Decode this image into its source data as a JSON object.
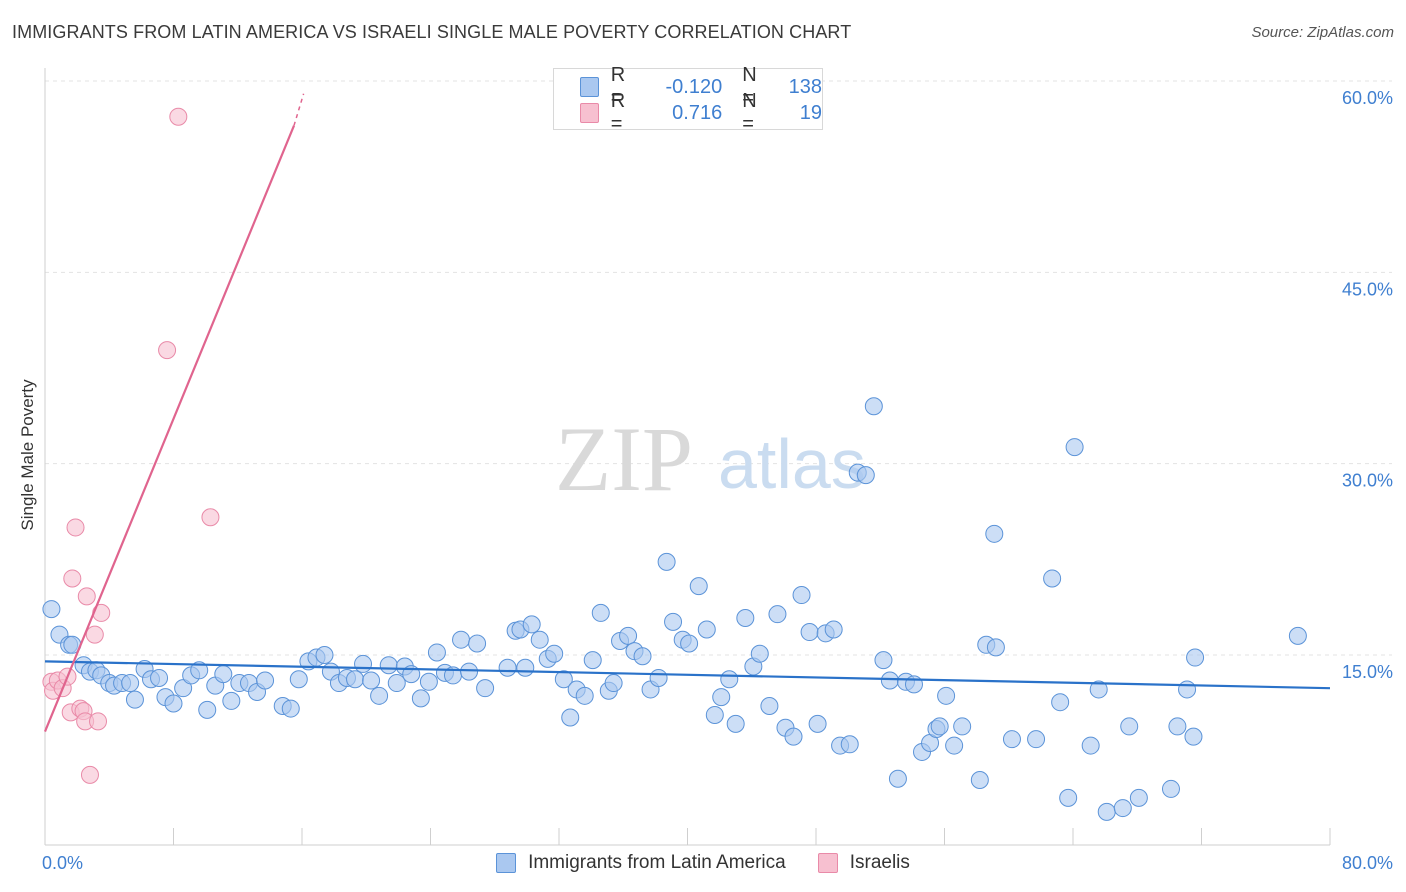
{
  "title": "IMMIGRANTS FROM LATIN AMERICA VS ISRAELI SINGLE MALE POVERTY CORRELATION CHART",
  "source": "Source: ZipAtlas.com",
  "watermark": {
    "zip": "ZIP",
    "atlas": "atlas"
  },
  "colors": {
    "blue_fill": "#aac8f0",
    "blue_stroke": "#5b93d8",
    "blue_line": "#2a72c9",
    "pink_fill": "#f7c0d0",
    "pink_stroke": "#e98aa8",
    "pink_line": "#e0648e",
    "tick_text": "#3f7fd0",
    "grid": "#e3e3e3"
  },
  "legend_top": {
    "rows": [
      {
        "r_label": "R =",
        "r_value": "-0.120",
        "n_label": "N =",
        "n_value": "138",
        "series": "blue"
      },
      {
        "r_label": "R =",
        "r_value": "0.716",
        "n_label": "N =",
        "n_value": "19",
        "series": "pink"
      }
    ]
  },
  "chart_data": {
    "type": "scatter",
    "title": "IMMIGRANTS FROM LATIN AMERICA VS ISRAELI SINGLE MALE POVERTY CORRELATION CHART",
    "xlabel": "",
    "ylabel": "Single Male Poverty",
    "xlim": [
      0,
      80
    ],
    "ylim": [
      0,
      62.5
    ],
    "x_tick_labels": [
      "0.0%",
      "80.0%"
    ],
    "y_ticks": [
      15,
      30,
      45,
      60
    ],
    "y_tick_labels": [
      "15.0%",
      "30.0%",
      "45.0%",
      "60.0%"
    ],
    "grid": "horizontal dashed",
    "legend": "bottom-center",
    "series": [
      {
        "name": "Immigrants from Latin America",
        "color": "blue",
        "trendline": [
          [
            0,
            14.5
          ],
          [
            80,
            12.4
          ]
        ],
        "points": [
          [
            0.4,
            18.6
          ],
          [
            0.9,
            16.6
          ],
          [
            1.5,
            15.8
          ],
          [
            1.7,
            15.8
          ],
          [
            2.4,
            14.2
          ],
          [
            2.8,
            13.7
          ],
          [
            3.2,
            13.8
          ],
          [
            3.5,
            13.4
          ],
          [
            4.0,
            12.8
          ],
          [
            4.3,
            12.6
          ],
          [
            4.8,
            12.8
          ],
          [
            5.3,
            12.8
          ],
          [
            5.6,
            11.5
          ],
          [
            6.2,
            13.9
          ],
          [
            6.6,
            13.1
          ],
          [
            7.1,
            13.2
          ],
          [
            7.5,
            11.7
          ],
          [
            8.0,
            11.2
          ],
          [
            8.6,
            12.4
          ],
          [
            9.1,
            13.4
          ],
          [
            9.6,
            13.8
          ],
          [
            10.1,
            10.7
          ],
          [
            10.6,
            12.6
          ],
          [
            11.1,
            13.5
          ],
          [
            11.6,
            11.4
          ],
          [
            12.1,
            12.8
          ],
          [
            12.7,
            12.8
          ],
          [
            13.2,
            12.1
          ],
          [
            13.7,
            13.0
          ],
          [
            14.8,
            11.0
          ],
          [
            15.3,
            10.8
          ],
          [
            15.8,
            13.1
          ],
          [
            16.4,
            14.5
          ],
          [
            16.9,
            14.8
          ],
          [
            17.4,
            15.0
          ],
          [
            17.8,
            13.7
          ],
          [
            18.3,
            12.8
          ],
          [
            18.8,
            13.2
          ],
          [
            19.3,
            13.1
          ],
          [
            19.8,
            14.3
          ],
          [
            20.3,
            13.0
          ],
          [
            20.8,
            11.8
          ],
          [
            21.4,
            14.2
          ],
          [
            21.9,
            12.8
          ],
          [
            22.4,
            14.1
          ],
          [
            22.8,
            13.5
          ],
          [
            23.4,
            11.6
          ],
          [
            23.9,
            12.9
          ],
          [
            24.4,
            15.2
          ],
          [
            24.9,
            13.6
          ],
          [
            25.4,
            13.4
          ],
          [
            25.9,
            16.2
          ],
          [
            26.4,
            13.7
          ],
          [
            26.9,
            15.9
          ],
          [
            27.4,
            12.4
          ],
          [
            28.8,
            14.0
          ],
          [
            29.3,
            16.9
          ],
          [
            29.6,
            17.0
          ],
          [
            29.9,
            14.0
          ],
          [
            30.3,
            17.4
          ],
          [
            30.8,
            16.2
          ],
          [
            31.3,
            14.7
          ],
          [
            31.7,
            15.1
          ],
          [
            32.3,
            13.1
          ],
          [
            32.7,
            10.1
          ],
          [
            33.1,
            12.3
          ],
          [
            33.6,
            11.8
          ],
          [
            34.1,
            14.6
          ],
          [
            34.6,
            18.3
          ],
          [
            35.1,
            12.2
          ],
          [
            35.4,
            12.8
          ],
          [
            35.8,
            16.1
          ],
          [
            36.3,
            16.5
          ],
          [
            36.7,
            15.3
          ],
          [
            37.2,
            14.9
          ],
          [
            37.7,
            12.3
          ],
          [
            38.2,
            13.2
          ],
          [
            38.7,
            22.3
          ],
          [
            39.1,
            17.6
          ],
          [
            39.7,
            16.2
          ],
          [
            40.1,
            15.9
          ],
          [
            40.7,
            20.4
          ],
          [
            41.2,
            17.0
          ],
          [
            41.7,
            10.3
          ],
          [
            42.1,
            11.7
          ],
          [
            42.6,
            13.1
          ],
          [
            43.0,
            9.6
          ],
          [
            43.6,
            17.9
          ],
          [
            44.1,
            14.1
          ],
          [
            44.5,
            15.1
          ],
          [
            45.1,
            11.0
          ],
          [
            45.6,
            18.2
          ],
          [
            46.1,
            9.3
          ],
          [
            46.6,
            8.6
          ],
          [
            47.1,
            19.7
          ],
          [
            47.6,
            16.8
          ],
          [
            48.1,
            9.6
          ],
          [
            48.6,
            16.7
          ],
          [
            49.1,
            17.0
          ],
          [
            49.5,
            7.9
          ],
          [
            50.1,
            8.0
          ],
          [
            50.6,
            29.3
          ],
          [
            51.1,
            29.1
          ],
          [
            51.6,
            34.5
          ],
          [
            52.2,
            14.6
          ],
          [
            52.6,
            13.0
          ],
          [
            53.1,
            5.3
          ],
          [
            53.6,
            12.9
          ],
          [
            54.1,
            12.7
          ],
          [
            54.6,
            7.4
          ],
          [
            55.1,
            8.1
          ],
          [
            55.5,
            9.2
          ],
          [
            55.7,
            9.4
          ],
          [
            56.1,
            11.8
          ],
          [
            56.6,
            7.9
          ],
          [
            57.1,
            9.4
          ],
          [
            58.2,
            5.2
          ],
          [
            58.6,
            15.8
          ],
          [
            59.1,
            24.5
          ],
          [
            59.2,
            15.6
          ],
          [
            60.2,
            8.4
          ],
          [
            61.7,
            8.4
          ],
          [
            62.7,
            21.0
          ],
          [
            63.2,
            11.3
          ],
          [
            63.7,
            3.8
          ],
          [
            64.1,
            31.3
          ],
          [
            65.1,
            7.9
          ],
          [
            65.6,
            12.3
          ],
          [
            66.1,
            2.7
          ],
          [
            67.1,
            3.0
          ],
          [
            67.5,
            9.4
          ],
          [
            68.1,
            3.8
          ],
          [
            70.1,
            4.5
          ],
          [
            70.5,
            9.4
          ],
          [
            71.1,
            12.3
          ],
          [
            71.5,
            8.6
          ],
          [
            71.6,
            14.8
          ],
          [
            78.0,
            16.5
          ]
        ]
      },
      {
        "name": "Israelis",
        "color": "pink",
        "trendline": [
          [
            0,
            9.0
          ],
          [
            15.5,
            56.5
          ]
        ],
        "trendline_dashed_extension": [
          [
            15.5,
            56.5
          ],
          [
            16.1,
            59.0
          ]
        ],
        "points": [
          [
            0.4,
            12.9
          ],
          [
            0.5,
            12.2
          ],
          [
            0.8,
            13.0
          ],
          [
            1.1,
            12.4
          ],
          [
            1.4,
            13.3
          ],
          [
            1.6,
            10.5
          ],
          [
            1.7,
            21.0
          ],
          [
            1.9,
            25.0
          ],
          [
            2.2,
            10.8
          ],
          [
            2.4,
            10.6
          ],
          [
            2.5,
            9.8
          ],
          [
            2.6,
            19.6
          ],
          [
            2.8,
            5.6
          ],
          [
            3.1,
            16.6
          ],
          [
            3.3,
            9.8
          ],
          [
            3.5,
            18.3
          ],
          [
            7.6,
            38.9
          ],
          [
            8.3,
            57.2
          ],
          [
            10.3,
            25.8
          ]
        ]
      }
    ]
  }
}
